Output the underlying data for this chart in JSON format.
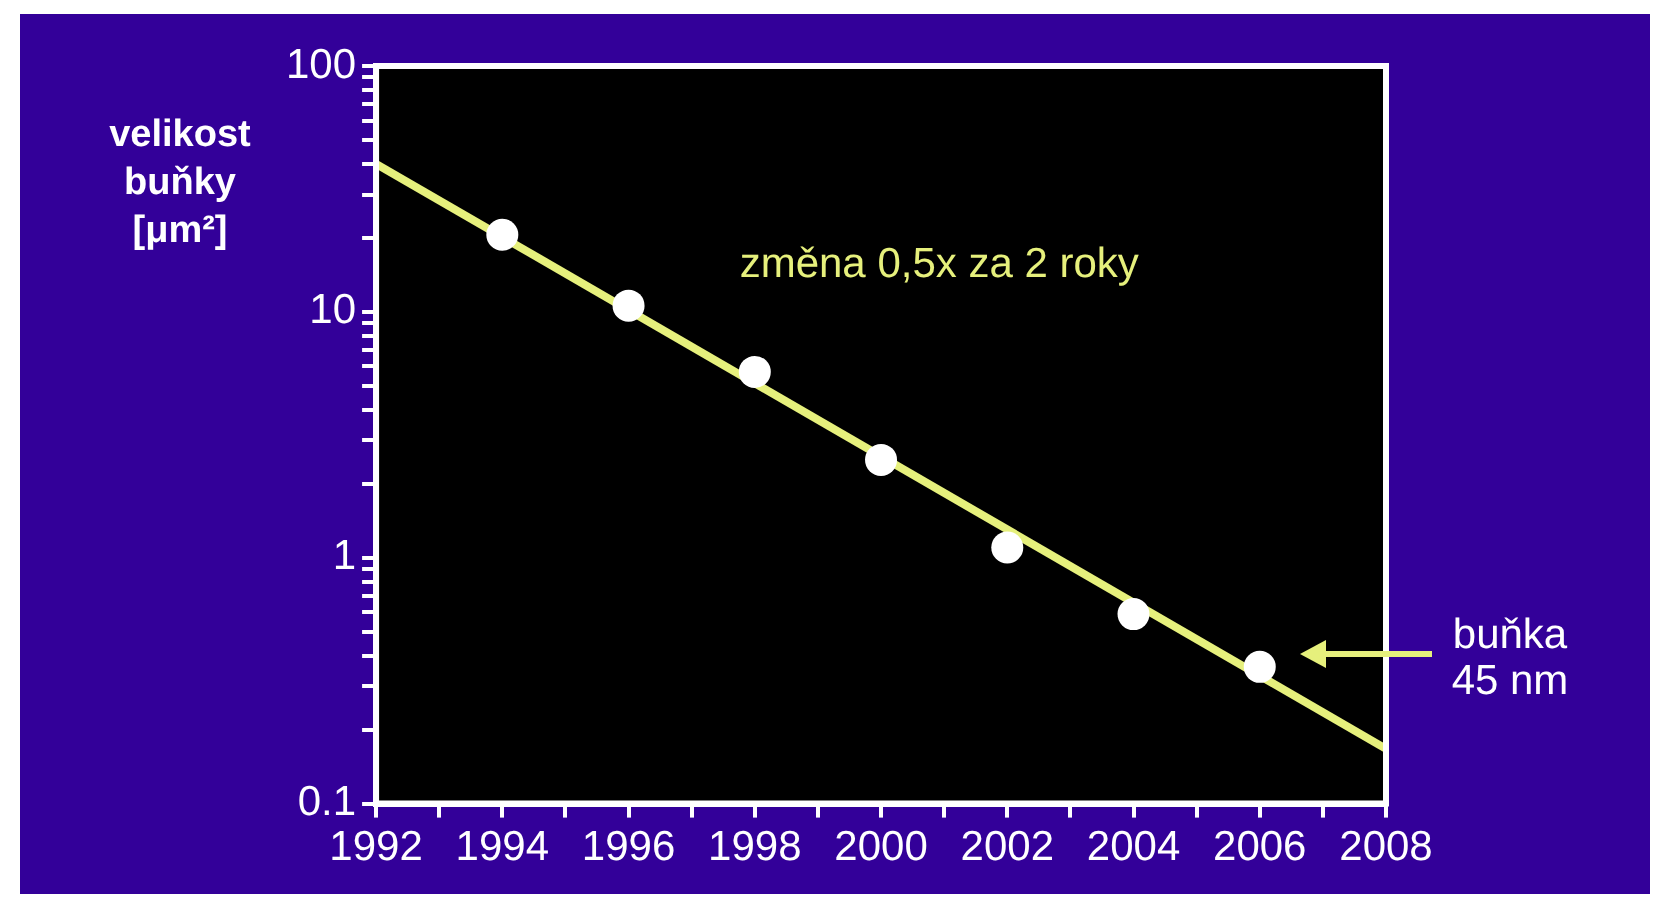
{
  "chart_data": {
    "type": "scatter",
    "ylabel": "velikost buňky [μm²]",
    "log": "y",
    "grid": false,
    "legend": false,
    "marker": "circle",
    "xlim": [
      1992,
      2008
    ],
    "xticks": [
      1992,
      {
        "value": 1993,
        "label": null
      },
      1994,
      {
        "value": 1995,
        "label": null
      },
      1996,
      {
        "value": 1997,
        "label": null
      },
      1998,
      {
        "value": 1999,
        "label": null
      },
      2000,
      {
        "value": 2001,
        "label": null
      },
      2002,
      {
        "value": 2003,
        "label": null
      },
      2004,
      {
        "value": 2005,
        "label": null
      },
      2006,
      {
        "value": 2007,
        "label": null
      },
      2008
    ],
    "ylim": [
      0.1,
      100
    ],
    "yticks": [
      0.1,
      {
        "value": 0.2,
        "label": null
      },
      {
        "value": 0.3,
        "label": null
      },
      {
        "value": 0.4,
        "label": null
      },
      {
        "value": 0.5,
        "label": null
      },
      {
        "value": 0.6,
        "label": null
      },
      {
        "value": 0.7,
        "label": null
      },
      {
        "value": 0.8,
        "label": null
      },
      {
        "value": 0.9,
        "label": null
      },
      1,
      {
        "value": 2,
        "label": null
      },
      {
        "value": 3,
        "label": null
      },
      {
        "value": 4,
        "label": null
      },
      {
        "value": 5,
        "label": null
      },
      {
        "value": 6,
        "label": null
      },
      {
        "value": 7,
        "label": null
      },
      {
        "value": 8,
        "label": null
      },
      {
        "value": 9,
        "label": null
      },
      10,
      {
        "value": 20,
        "label": null
      },
      {
        "value": 30,
        "label": null
      },
      {
        "value": 40,
        "label": null
      },
      {
        "value": 50,
        "label": null
      },
      {
        "value": 60,
        "label": null
      },
      {
        "value": 70,
        "label": null
      },
      {
        "value": 80,
        "label": null
      },
      {
        "value": 90,
        "label": null
      },
      100
    ],
    "series": [
      {
        "type": "line",
        "color": "#e6f07c",
        "x": [
          1992,
          2008
        ],
        "values": [
          40,
          0.167
        ],
        "marker": "none"
      },
      {
        "color": "#ffffff",
        "x": [
          1994,
          1996,
          1998,
          2000,
          2002,
          2004,
          2006
        ],
        "values": [
          20.6,
          10.6,
          5.7,
          2.5,
          1.1,
          0.59,
          0.36
        ]
      }
    ],
    "annotations": [
      "změna 0,5x za 2 roky",
      "buňka\n45 nm"
    ]
  }
}
